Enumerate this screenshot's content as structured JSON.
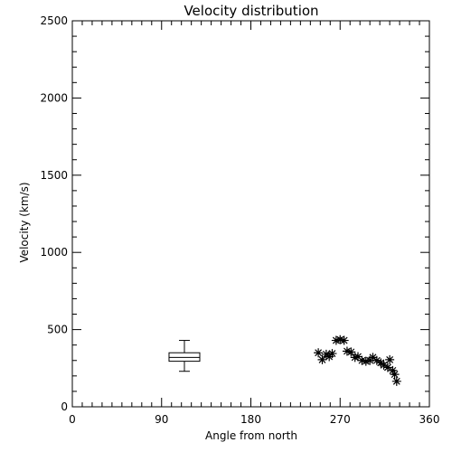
{
  "chart_data": {
    "type": "scatter",
    "title": "Velocity distribution",
    "xlabel": "Angle from north",
    "ylabel": "Velocity (km/s)",
    "xlim": [
      0,
      360
    ],
    "ylim": [
      0,
      2500
    ],
    "x_ticks": [
      0,
      90,
      180,
      270,
      360
    ],
    "y_ticks": [
      0,
      500,
      1000,
      1500,
      2000,
      2500
    ],
    "grid": false,
    "marker": "asterisk",
    "boxplot": {
      "x": 113,
      "whisker_low": 230,
      "q1": 295,
      "median": 320,
      "q3": 350,
      "whisker_high": 430
    },
    "points": [
      {
        "x": 248,
        "y": 350
      },
      {
        "x": 252,
        "y": 305
      },
      {
        "x": 256,
        "y": 340
      },
      {
        "x": 259,
        "y": 325
      },
      {
        "x": 262,
        "y": 345
      },
      {
        "x": 266,
        "y": 430
      },
      {
        "x": 270,
        "y": 435
      },
      {
        "x": 274,
        "y": 430
      },
      {
        "x": 277,
        "y": 360
      },
      {
        "x": 281,
        "y": 355
      },
      {
        "x": 285,
        "y": 320
      },
      {
        "x": 288,
        "y": 325
      },
      {
        "x": 292,
        "y": 300
      },
      {
        "x": 296,
        "y": 295
      },
      {
        "x": 300,
        "y": 300
      },
      {
        "x": 303,
        "y": 320
      },
      {
        "x": 307,
        "y": 300
      },
      {
        "x": 311,
        "y": 285
      },
      {
        "x": 314,
        "y": 270
      },
      {
        "x": 318,
        "y": 255
      },
      {
        "x": 320,
        "y": 305
      },
      {
        "x": 323,
        "y": 235
      },
      {
        "x": 325,
        "y": 210
      },
      {
        "x": 327,
        "y": 165
      }
    ]
  }
}
